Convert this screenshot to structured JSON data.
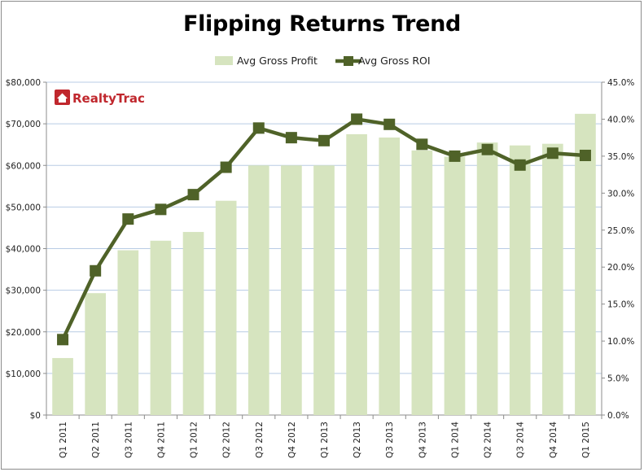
{
  "chart_data": {
    "type": "bar",
    "title": "Flipping Returns Trend",
    "categories": [
      "Q1 2011",
      "Q2 2011",
      "Q3 2011",
      "Q4 2011",
      "Q1 2012",
      "Q2 2012",
      "Q3 2012",
      "Q4 2012",
      "Q1 2013",
      "Q2 2013",
      "Q3 2013",
      "Q4 2013",
      "Q1 2014",
      "Q2 2014",
      "Q3 2014",
      "Q4 2014",
      "Q1 2015"
    ],
    "series": [
      {
        "name": "Avg Gross Profit",
        "type": "bar",
        "axis": "left",
        "color": "#d6e4bf",
        "values": [
          13700,
          29300,
          39600,
          41900,
          44000,
          51500,
          60000,
          60000,
          60000,
          67500,
          66700,
          63600,
          62100,
          65500,
          64800,
          65200,
          72400
        ]
      },
      {
        "name": "Avg Gross ROI",
        "type": "line",
        "axis": "right",
        "color": "#4f6228",
        "values": [
          10.2,
          19.5,
          26.5,
          27.8,
          29.8,
          33.5,
          38.8,
          37.5,
          37.1,
          40.0,
          39.3,
          36.6,
          35.0,
          35.9,
          33.8,
          35.4,
          35.1
        ]
      }
    ],
    "y_left": {
      "min": 0,
      "max": 80000,
      "step": 10000,
      "tick_labels": [
        "$0",
        "$10,000",
        "$20,000",
        "$30,000",
        "$40,000",
        "$50,000",
        "$60,000",
        "$70,000",
        "$80,000"
      ]
    },
    "y_right": {
      "min": 0,
      "max": 45,
      "step": 5,
      "tick_labels": [
        "0.0%",
        "5.0%",
        "10.0%",
        "15.0%",
        "20.0%",
        "25.0%",
        "30.0%",
        "35.0%",
        "40.0%",
        "45.0%"
      ]
    },
    "grid": true,
    "legend_position": "top"
  },
  "logo": {
    "text": "RealtyTrac",
    "color": "#c0272d"
  }
}
